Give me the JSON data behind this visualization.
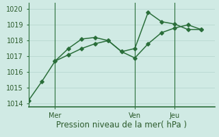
{
  "line1_x": [
    0,
    1,
    2,
    3,
    4,
    5,
    6,
    7,
    8,
    9,
    10,
    11,
    12,
    13
  ],
  "line1_y": [
    1014.2,
    1015.4,
    1016.7,
    1017.5,
    1018.1,
    1018.2,
    1018.0,
    1017.3,
    1017.5,
    1019.8,
    1019.2,
    1019.05,
    1018.7,
    1018.7
  ],
  "line2_x": [
    2,
    3,
    4,
    5,
    6,
    7,
    8,
    9,
    10,
    11,
    12,
    13
  ],
  "line2_y": [
    1016.7,
    1017.1,
    1017.5,
    1017.8,
    1018.0,
    1017.3,
    1016.9,
    1017.8,
    1018.5,
    1018.8,
    1019.0,
    1018.7
  ],
  "line_color": "#2a6e3a",
  "bg_color": "#d0eae4",
  "grid_color": "#b8d8d0",
  "xtick_positions": [
    2,
    8,
    11
  ],
  "xtick_labels": [
    "Mer",
    "Ven",
    "Jeu"
  ],
  "vline_positions": [
    2,
    8,
    11
  ],
  "xlim": [
    0,
    14
  ],
  "ylim": [
    1013.8,
    1020.4
  ],
  "ytick_values": [
    1014,
    1015,
    1016,
    1017,
    1018,
    1019,
    1020
  ],
  "xlabel": "Pression niveau de la mer( hPa )",
  "xlabel_fontsize": 8.5,
  "tick_fontsize": 7,
  "line_width": 1.1,
  "marker": "D",
  "marker_size": 2.8
}
